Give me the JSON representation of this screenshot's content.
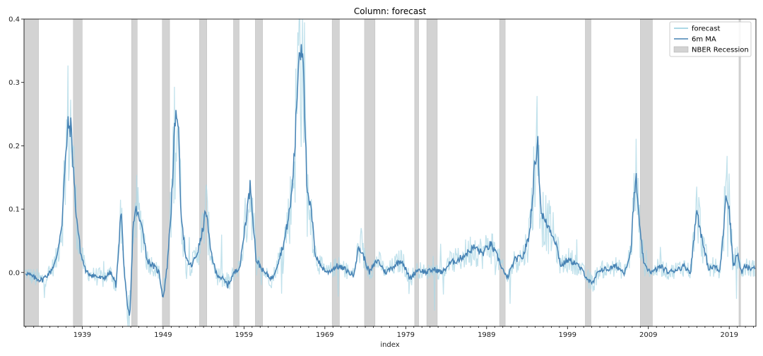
{
  "chart_data": {
    "type": "line",
    "title": "Column: forecast",
    "xlabel": "index",
    "ylabel": "",
    "xlim": [
      1931.8,
      2022.3
    ],
    "ylim": [
      -0.085,
      0.4
    ],
    "x_ticks": [
      1939,
      1949,
      1959,
      1969,
      1979,
      1989,
      1999,
      2009,
      2019
    ],
    "y_ticks": [
      0.0,
      0.1,
      0.2,
      0.3,
      0.4
    ],
    "y_tick_labels": [
      "0.0",
      "0.1",
      "0.2",
      "0.3",
      "0.4"
    ],
    "legend": {
      "placement": "top-right",
      "entries": [
        "forecast",
        "6m MA",
        "NBER Recession"
      ]
    },
    "colors": {
      "forecast": "#add8e6",
      "ma": "#4682b4",
      "recession": "#d3d3d3"
    },
    "recessions": [
      [
        1931.8,
        1933.6
      ],
      [
        1937.9,
        1939.0
      ],
      [
        1945.1,
        1945.8
      ],
      [
        1948.9,
        1949.8
      ],
      [
        1953.5,
        1954.4
      ],
      [
        1957.7,
        1958.4
      ],
      [
        1960.4,
        1961.3
      ],
      [
        1969.9,
        1970.8
      ],
      [
        1973.9,
        1975.2
      ],
      [
        1980.1,
        1980.6
      ],
      [
        1981.6,
        1982.9
      ],
      [
        1990.6,
        1991.3
      ],
      [
        2001.2,
        2001.9
      ],
      [
        2008.0,
        2009.5
      ],
      [
        2020.2,
        2020.4
      ]
    ],
    "series": [
      {
        "name": "6m MA",
        "x": [
          1932,
          1933,
          1934,
          1935,
          1935.8,
          1936.5,
          1936.8,
          1937.2,
          1937.6,
          1938.2,
          1938.8,
          1939.5,
          1940.5,
          1941.5,
          1942.5,
          1943.2,
          1943.8,
          1944.2,
          1944.6,
          1944.9,
          1945.3,
          1945.7,
          1946.1,
          1946.5,
          1947.0,
          1947.8,
          1948.5,
          1949.0,
          1949.5,
          1950.0,
          1950.4,
          1950.8,
          1951.2,
          1951.8,
          1952.5,
          1953.2,
          1953.8,
          1954.3,
          1954.8,
          1955.5,
          1956.3,
          1957.0,
          1957.8,
          1958.5,
          1959.2,
          1959.8,
          1960.5,
          1961.5,
          1962.5,
          1963.3,
          1964.0,
          1964.8,
          1965.3,
          1965.8,
          1966.3,
          1966.8,
          1967.3,
          1967.8,
          1968.5,
          1969.3,
          1970.5,
          1971.5,
          1972.5,
          1973.2,
          1973.8,
          1974.5,
          1975.5,
          1976.5,
          1977.5,
          1978.5,
          1979.5,
          1980.5,
          1981.5,
          1982.5,
          1983.5,
          1984.5,
          1985.5,
          1986.5,
          1987.5,
          1988.5,
          1989.5,
          1990.5,
          1991.5,
          1992.5,
          1993.5,
          1994.3,
          1994.9,
          1995.3,
          1995.7,
          1996.2,
          1996.8,
          1997.5,
          1998.2,
          1999.0,
          2000.0,
          2001.0,
          2002.0,
          2003.0,
          2004.0,
          2005.0,
          2006.0,
          2006.8,
          2007.2,
          2007.5,
          2007.9,
          2008.5,
          2009.5,
          2010.5,
          2011.5,
          2012.5,
          2013.5,
          2014.2,
          2014.6,
          2015.0,
          2015.8,
          2016.5,
          2017.2,
          2017.8,
          2018.2,
          2018.6,
          2019.0,
          2019.5,
          2020.0,
          2020.5,
          2021.0,
          2021.6,
          2022.2
        ],
        "values": [
          0.0,
          -0.008,
          -0.012,
          0.0,
          0.02,
          0.08,
          0.15,
          0.23,
          0.23,
          0.1,
          0.03,
          0.0,
          -0.005,
          -0.01,
          0.0,
          -0.02,
          0.1,
          0.0,
          -0.06,
          -0.07,
          0.08,
          0.1,
          0.08,
          0.07,
          0.02,
          0.01,
          0.0,
          -0.04,
          0.01,
          0.1,
          0.22,
          0.26,
          0.1,
          0.02,
          0.01,
          0.03,
          0.06,
          0.1,
          0.04,
          0.0,
          -0.01,
          -0.02,
          0.0,
          0.01,
          0.08,
          0.14,
          0.02,
          0.0,
          -0.01,
          0.02,
          0.05,
          0.11,
          0.2,
          0.35,
          0.36,
          0.12,
          0.1,
          0.03,
          0.01,
          0.0,
          0.01,
          0.005,
          -0.005,
          0.04,
          0.025,
          0.0,
          0.02,
          0.0,
          0.01,
          0.02,
          -0.01,
          0.005,
          0.0,
          0.005,
          0.0,
          0.015,
          0.02,
          0.03,
          0.04,
          0.03,
          0.045,
          0.02,
          -0.01,
          0.02,
          0.025,
          0.06,
          0.16,
          0.21,
          0.1,
          0.08,
          0.07,
          0.05,
          0.01,
          0.02,
          0.015,
          0.0,
          -0.02,
          0.005,
          0.005,
          0.01,
          0.0,
          0.03,
          0.11,
          0.15,
          0.07,
          0.01,
          0.0,
          0.01,
          0.0,
          0.005,
          0.01,
          0.0,
          0.05,
          0.1,
          0.04,
          0.005,
          0.01,
          0.0,
          0.05,
          0.13,
          0.1,
          0.01,
          0.03,
          0.0,
          0.01,
          0.005,
          0.01
        ]
      }
    ]
  }
}
